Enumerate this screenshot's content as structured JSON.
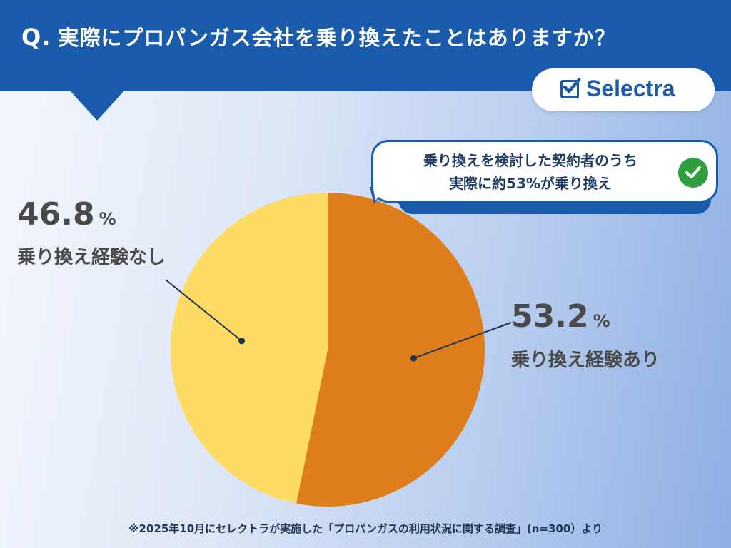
{
  "header": {
    "q_mark": "Q.",
    "question": "実際にプロパンガス会社を乗り換えたことはありますか？"
  },
  "logo": {
    "text": "Selectra"
  },
  "callout": {
    "line1": "乗り換えを検討した契約者のうち",
    "line2": "実際に約53%が乗り換え"
  },
  "colors": {
    "header": "#1b5bab",
    "switched": "#dd7e1b",
    "not_switched": "#fedc63",
    "check_green": "#2e9e3f"
  },
  "chart_data": {
    "type": "pie",
    "unit": "%",
    "slices": [
      {
        "label": "乗り換え経験あり",
        "value": 53.2,
        "value_text": "53.2",
        "color": "#dd7e1b"
      },
      {
        "label": "乗り換え経験なし",
        "value": 46.8,
        "value_text": "46.8",
        "color": "#fedc63"
      }
    ],
    "start": "12 o'clock",
    "direction": "clockwise"
  },
  "footnote": "※2025年10月にセレクトラが実施した「プロパンガスの利用状況に関する調査」(n=300）より"
}
